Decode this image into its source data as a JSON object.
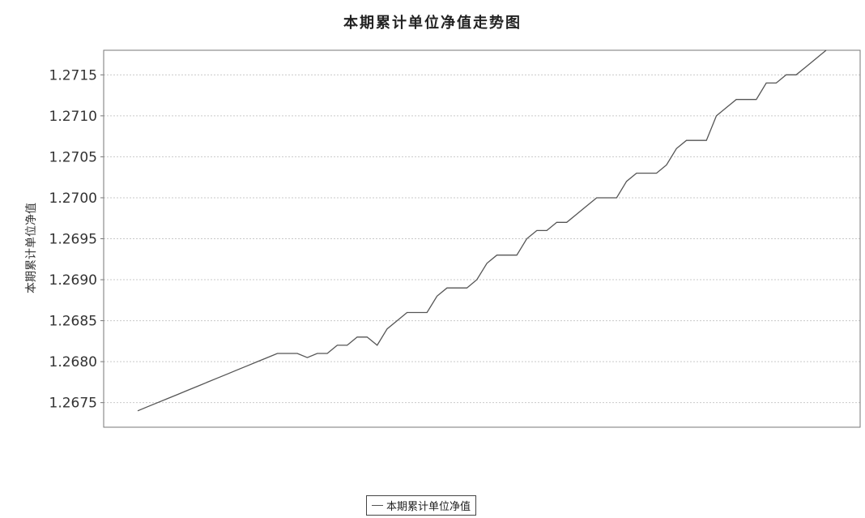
{
  "chart_data": {
    "type": "line",
    "title": "本期累计单位净值走势图",
    "ylabel": "本期累计单位净值",
    "xlabel": "",
    "ylim": [
      1.2672,
      1.2718
    ],
    "yticks": [
      "1.2675",
      "1.2680",
      "1.2685",
      "1.2690",
      "1.2695",
      "1.2700",
      "1.2705",
      "1.2710",
      "1.2715"
    ],
    "grid": true,
    "legend_position": "bottom-center",
    "series": [
      {
        "name": "本期累计单位净值",
        "color": "#555555",
        "values": [
          1.2674,
          1.26745,
          1.2675,
          1.26755,
          1.2676,
          1.26765,
          1.2677,
          1.26775,
          1.2678,
          1.26785,
          1.2679,
          1.26795,
          1.268,
          1.26805,
          1.2681,
          1.2681,
          1.2681,
          1.26805,
          1.2681,
          1.2681,
          1.2682,
          1.2682,
          1.2683,
          1.2683,
          1.2682,
          1.2684,
          1.2685,
          1.2686,
          1.2686,
          1.2686,
          1.2688,
          1.2689,
          1.2689,
          1.2689,
          1.269,
          1.2692,
          1.2693,
          1.2693,
          1.2693,
          1.2695,
          1.2696,
          1.2696,
          1.2697,
          1.2697,
          1.2698,
          1.2699,
          1.27,
          1.27,
          1.27,
          1.2702,
          1.2703,
          1.2703,
          1.2703,
          1.2704,
          1.2706,
          1.2707,
          1.2707,
          1.2707,
          1.271,
          1.2711,
          1.2712,
          1.2712,
          1.2712,
          1.2714,
          1.2714,
          1.2715,
          1.2715,
          1.2716,
          1.2717,
          1.2718
        ]
      }
    ]
  }
}
